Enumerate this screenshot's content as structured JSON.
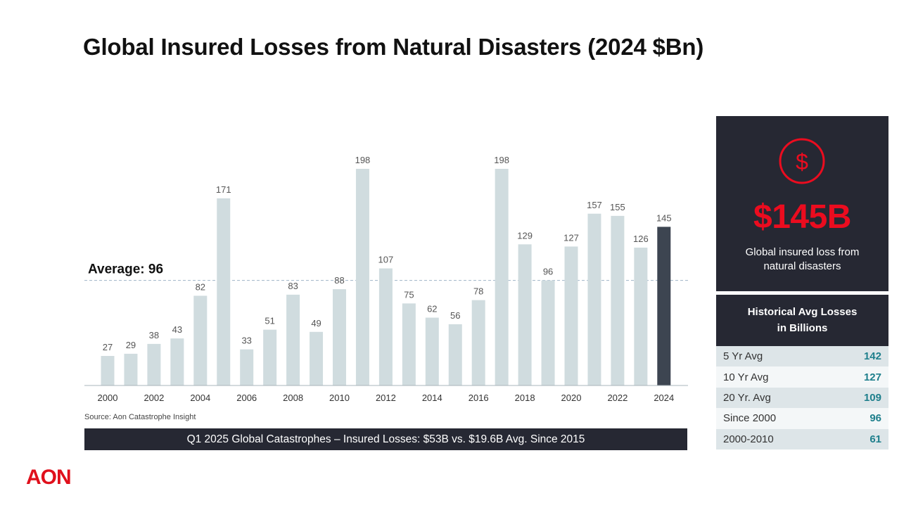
{
  "title": "Global Insured Losses from Natural Disasters (2024 $Bn)",
  "chart_data": {
    "type": "bar",
    "categories": [
      "2000",
      "2001",
      "2002",
      "2003",
      "2004",
      "2005",
      "2006",
      "2007",
      "2008",
      "2009",
      "2010",
      "2011",
      "2012",
      "2013",
      "2014",
      "2015",
      "2016",
      "2017",
      "2018",
      "2019",
      "2020",
      "2021",
      "2022",
      "2023",
      "2024"
    ],
    "values": [
      27,
      29,
      38,
      43,
      82,
      171,
      33,
      51,
      83,
      49,
      88,
      198,
      107,
      75,
      62,
      56,
      78,
      198,
      129,
      96,
      127,
      157,
      155,
      126,
      145
    ],
    "x_tick_labels": [
      "2000",
      "2002",
      "2004",
      "2006",
      "2008",
      "2010",
      "2012",
      "2014",
      "2016",
      "2018",
      "2020",
      "2022",
      "2024"
    ],
    "average": 96,
    "average_label": "Average: 96",
    "highlight_category": "2024",
    "ylim": [
      0,
      198
    ],
    "grid": false,
    "colors": {
      "bar": "#d0dcdf",
      "highlight": "#3d4551",
      "average_line": "#9fb3c8"
    }
  },
  "source": "Source: Aon Catastrophe Insight",
  "banner": "Q1 2025 Global Catastrophes – Insured Losses: $53B vs. $19.6B Avg. Since 2015",
  "logo": "AON",
  "kpi": {
    "icon": "dollar-circle-icon",
    "value": "$145B",
    "desc_line1": "Global insured loss from",
    "desc_line2": "natural disasters"
  },
  "historical": {
    "title_line1": "Historical Avg Losses",
    "title_line2": "in Billions",
    "rows": [
      {
        "label": "5 Yr Avg",
        "value": "142"
      },
      {
        "label": "10 Yr Avg",
        "value": "127"
      },
      {
        "label": "20 Yr. Avg",
        "value": "109"
      },
      {
        "label": "Since 2000",
        "value": "96"
      },
      {
        "label": "2000-2010",
        "value": "61"
      }
    ]
  },
  "colors": {
    "accent": "#eb0c1f",
    "dark_panel": "#262833",
    "table_value": "#1e7f8c"
  }
}
